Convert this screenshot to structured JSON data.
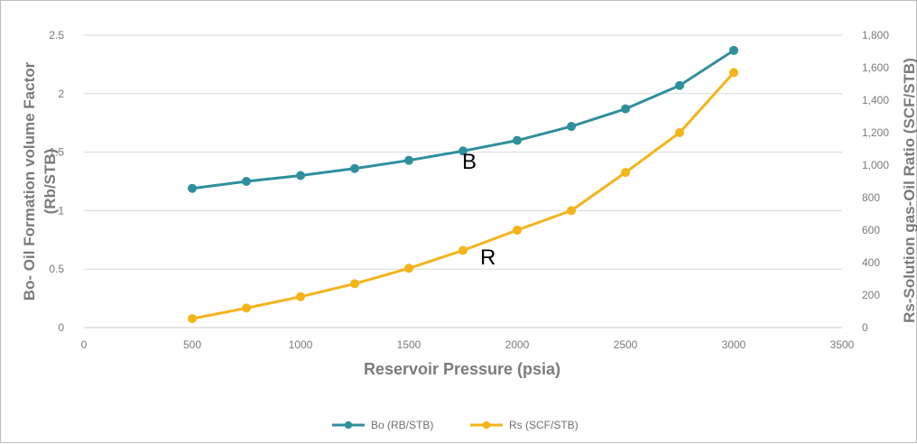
{
  "chart_data": {
    "type": "line",
    "title": "",
    "xlabel": "Reservoir Pressure (psia)",
    "ylabel_left_line1": "Bo- Oil Formation volume Factor",
    "ylabel_left_line2": "(Rb/STB)",
    "ylabel_right": "Rs-Solution gas-Oil Ratio (SCF/STB)",
    "xlim": [
      0,
      3500
    ],
    "ylim_left": [
      0,
      2.5
    ],
    "ylim_right": [
      0,
      1800
    ],
    "grid": true,
    "legend_position": "bottom",
    "x_ticks": [
      "0",
      "500",
      "1000",
      "1500",
      "2000",
      "2500",
      "3000",
      "3500"
    ],
    "y_left_ticks": [
      "0",
      "0.5",
      "1",
      "1.5",
      "2",
      "2.5"
    ],
    "y_right_ticks": [
      "0",
      "200",
      "400",
      "600",
      "800",
      "1,000",
      "1,200",
      "1,400",
      "1,600",
      "1,800"
    ],
    "x": [
      500,
      750,
      1000,
      1250,
      1500,
      1750,
      2000,
      2250,
      2500,
      2750,
      3000
    ],
    "series": [
      {
        "name": "Bo (RB/STB)",
        "axis": "left",
        "color": "#2f8f9d",
        "values": [
          1.19,
          1.25,
          1.3,
          1.36,
          1.43,
          1.51,
          1.6,
          1.72,
          1.87,
          2.07,
          2.37
        ]
      },
      {
        "name": "Rs (SCF/STB)",
        "axis": "right",
        "color": "#f4b41a",
        "values": [
          55,
          120,
          190,
          270,
          365,
          475,
          600,
          720,
          955,
          1200,
          1570
        ]
      }
    ],
    "annotations": [
      {
        "text": "B",
        "x": 1800,
        "y_left": 1.47
      },
      {
        "text": "R",
        "x": 1850,
        "y_right": 440
      }
    ]
  }
}
